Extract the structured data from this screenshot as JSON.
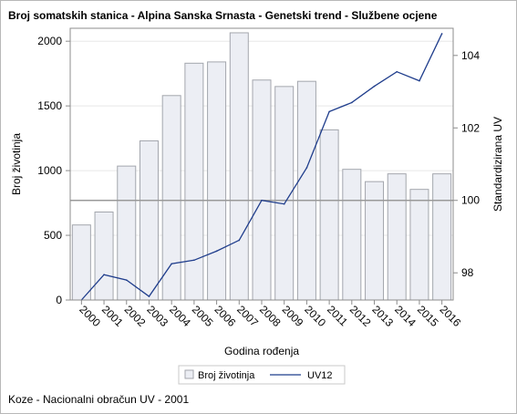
{
  "title": "Broj somatskih stanica - Alpina Sanska Srnasta - Genetski trend - Službene ocjene",
  "footnote": "Koze - Nacionalni obračun UV - 2001",
  "chart_data": {
    "type": "bar",
    "title": "Broj somatskih stanica - Alpina Sanska Srnasta - Genetski trend - Službene ocjene",
    "xlabel": "Godina rođenja",
    "ylabel": "Broj životinja",
    "y2label": "Standardizirana UV",
    "categories": [
      "2000",
      "2001",
      "2002",
      "2003",
      "2004",
      "2005",
      "2006",
      "2007",
      "2008",
      "2009",
      "2010",
      "2011",
      "2012",
      "2013",
      "2014",
      "2015",
      "2016"
    ],
    "ylim": [
      0,
      2100
    ],
    "yticks": [
      0,
      500,
      1000,
      1500,
      2000
    ],
    "y2lim": [
      97.25,
      104.75
    ],
    "y2ticks": [
      98,
      100,
      102,
      104
    ],
    "reference_line": 770,
    "series": [
      {
        "name": "Broj životinja",
        "type": "bar",
        "axis": "left",
        "values": [
          580,
          680,
          1035,
          1230,
          1580,
          1830,
          1840,
          2065,
          1700,
          1650,
          1690,
          1315,
          1010,
          915,
          975,
          855,
          975
        ]
      },
      {
        "name": "UV12",
        "type": "line",
        "axis": "right",
        "values": [
          97.25,
          97.95,
          97.8,
          97.35,
          98.25,
          98.35,
          98.6,
          98.9,
          100.0,
          99.9,
          100.9,
          102.45,
          102.7,
          103.15,
          103.55,
          103.3,
          104.6
        ]
      }
    ],
    "colors": {
      "bar_fill": "#eceef4",
      "bar_stroke": "#a3a6ad",
      "line": "#1f3d8c",
      "reference_line": "#9a9a9a",
      "gridline": "#e8e8e8",
      "axis": "#8c8c8c"
    },
    "grid": true,
    "legend_position": "bottom"
  }
}
